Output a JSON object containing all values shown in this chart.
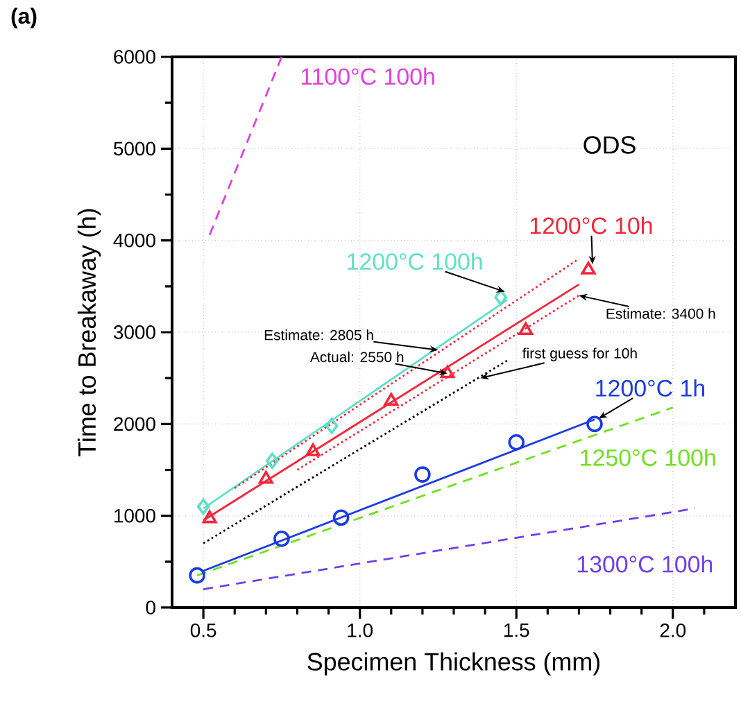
{
  "chart_data": {
    "type": "line",
    "title": "(a)",
    "xlabel": "Specimen Thickness (mm)",
    "ylabel": "Time to Breakaway (h)",
    "xlim": [
      0.4,
      2.2
    ],
    "ylim": [
      0,
      6000
    ],
    "xticks": [
      {
        "value": 0.5,
        "label": "0.5"
      },
      {
        "value": 0.6,
        "label": null
      },
      {
        "value": 0.7,
        "label": null
      },
      {
        "value": 0.8,
        "label": null
      },
      {
        "value": 0.9,
        "label": null
      },
      {
        "value": 1.0,
        "label": "1.0"
      },
      {
        "value": 1.1,
        "label": null
      },
      {
        "value": 1.2,
        "label": null
      },
      {
        "value": 1.3,
        "label": null
      },
      {
        "value": 1.4,
        "label": null
      },
      {
        "value": 1.5,
        "label": "1.5"
      },
      {
        "value": 1.6,
        "label": null
      },
      {
        "value": 1.7,
        "label": null
      },
      {
        "value": 1.8,
        "label": null
      },
      {
        "value": 1.9,
        "label": null
      },
      {
        "value": 2.0,
        "label": "2.0"
      },
      {
        "value": 2.1,
        "label": null
      }
    ],
    "yticks": [
      0,
      {
        "value": 500,
        "label": null
      },
      1000,
      {
        "value": 1500,
        "label": null
      },
      2000,
      {
        "value": 2500,
        "label": null
      },
      3000,
      {
        "value": 3500,
        "label": null
      },
      4000,
      {
        "value": 4500,
        "label": null
      },
      5000,
      {
        "value": 5500,
        "label": null
      },
      6000
    ],
    "grid": true,
    "series": [
      {
        "name": "1100°C 100h",
        "type": "line",
        "line_style": "dashed",
        "marker": "none",
        "color": "#e040e0",
        "x": [
          0.52,
          0.75
        ],
        "values": [
          4060,
          6000
        ]
      },
      {
        "type": "line",
        "line_style": "solid",
        "marker": "none",
        "color": "#5ee0c8",
        "x": [
          0.5,
          1.47
        ],
        "values": [
          1080,
          3350
        ]
      },
      {
        "name": "1200°C 100h",
        "type": "scatter",
        "marker": "diamond",
        "color": "#5ee0c8",
        "x": [
          0.5,
          0.72,
          0.91,
          1.45
        ],
        "values": [
          1100,
          1600,
          1980,
          3380
        ]
      },
      {
        "type": "line",
        "line_style": "solid",
        "marker": "none",
        "color": "#f0283c",
        "x": [
          0.5,
          1.7
        ],
        "values": [
          950,
          3520
        ]
      },
      {
        "type": "line",
        "line_style": "dotted",
        "marker": "none",
        "color": "#f0283c",
        "x": [
          0.6,
          1.7
        ],
        "values": [
          1300,
          3800
        ]
      },
      {
        "type": "line",
        "line_style": "dotted",
        "marker": "none",
        "color": "#f0283c",
        "x": [
          0.8,
          1.7
        ],
        "values": [
          1500,
          3400
        ]
      },
      {
        "name": "1200°C 10h",
        "type": "scatter",
        "marker": "triangle",
        "color": "#f0283c",
        "x": [
          0.52,
          0.7,
          0.85,
          1.1,
          1.28,
          1.53,
          1.73
        ],
        "values": [
          970,
          1400,
          1700,
          2250,
          2550,
          3020,
          3680
        ]
      },
      {
        "type": "line",
        "line_style": "dotted",
        "marker": "none",
        "color": "#000000",
        "x": [
          0.5,
          1.47
        ],
        "values": [
          700,
          2690
        ]
      },
      {
        "type": "line",
        "line_style": "solid",
        "marker": "none",
        "color": "#1c3ce0",
        "x": [
          0.5,
          1.75
        ],
        "values": [
          400,
          2050
        ]
      },
      {
        "name": "1200°C 1h",
        "type": "scatter",
        "marker": "circle",
        "color": "#1c3ce0",
        "x": [
          0.48,
          0.75,
          0.94,
          1.2,
          1.5,
          1.75
        ],
        "values": [
          350,
          750,
          980,
          1450,
          1800,
          2000
        ]
      },
      {
        "name": "1250°C 100h",
        "type": "line",
        "line_style": "dashed",
        "marker": "none",
        "color": "#70e020",
        "x": [
          0.48,
          2.0
        ],
        "values": [
          350,
          2180
        ]
      },
      {
        "name": "1300°C 100h",
        "type": "line",
        "line_style": "dashed",
        "marker": "none",
        "color": "#7040e8",
        "x": [
          0.5,
          2.07
        ],
        "values": [
          200,
          1080
        ]
      }
    ],
    "annotations": [
      "ODS",
      {
        "text": "Estimate: 2805 h",
        "x": 1.25,
        "y": 2805
      },
      {
        "text": "Actual: 2550 h",
        "x": 1.28,
        "y": 2550
      },
      {
        "text": "Estimate: 3400 h",
        "x": 1.7,
        "y": 3400
      },
      {
        "text": "first guess for 10h",
        "x": 1.385,
        "y": 2500
      }
    ]
  }
}
